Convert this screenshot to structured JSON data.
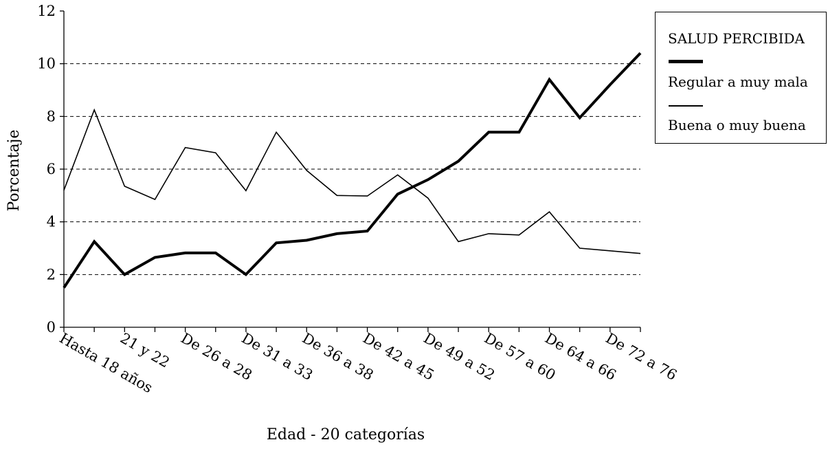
{
  "chart_data": {
    "type": "line",
    "title": "",
    "xlabel": "Edad - 20 categorías",
    "ylabel": "Porcentaje",
    "ylim": [
      0,
      12
    ],
    "yticks": [
      0,
      2,
      4,
      6,
      8,
      10,
      12
    ],
    "grid": "horizontal dashed",
    "categories": [
      "Hasta 18 años",
      "",
      "21 y 22",
      "",
      "De 26 a 28",
      "",
      "De 31 a 33",
      "",
      "De 36 a 38",
      "",
      "De 42 a 45",
      "",
      "De 49 a 52",
      "",
      "De 57 a 60",
      "",
      "De 64 a 66",
      "",
      "De 72 a 76",
      ""
    ],
    "legend": {
      "title": "SALUD PERCIBIDA",
      "position": "right"
    },
    "series": [
      {
        "name": "Regular a muy mala",
        "style": "thick",
        "color": "#000000",
        "values": [
          1.5,
          3.25,
          2.0,
          2.65,
          2.82,
          2.82,
          2.0,
          3.2,
          3.3,
          3.55,
          3.65,
          5.05,
          5.6,
          6.3,
          7.4,
          7.4,
          9.4,
          7.95,
          9.2,
          10.4
        ]
      },
      {
        "name": "Buena o muy buena",
        "style": "thin",
        "color": "#000000",
        "values": [
          5.2,
          8.25,
          5.35,
          4.85,
          6.82,
          6.62,
          5.18,
          7.4,
          5.95,
          5.0,
          4.98,
          5.78,
          4.9,
          3.25,
          3.55,
          3.5,
          4.38,
          3.0,
          2.9,
          2.8
        ]
      }
    ]
  }
}
